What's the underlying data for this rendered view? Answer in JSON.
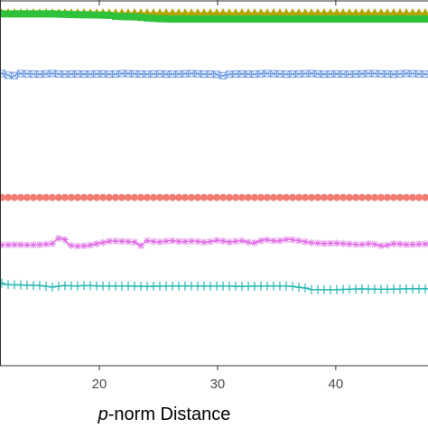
{
  "chart_data": {
    "type": "line",
    "title": "",
    "xlabel_italic": "p",
    "xlabel_rest": "-norm Distance",
    "ylabel": "",
    "xlim": [
      11.6,
      47.8
    ],
    "x_ticks": [
      20,
      30,
      40
    ],
    "grid": false,
    "legend": "none",
    "series": [
      {
        "marker": "triangle",
        "color": "#b5a300",
        "x": [
          11.6,
          16,
          20,
          24,
          28,
          32,
          36,
          40,
          44,
          47.8
        ],
        "y": [
          0.965,
          0.965,
          0.965,
          0.965,
          0.965,
          0.965,
          0.965,
          0.965,
          0.965,
          0.965
        ]
      },
      {
        "marker": "square",
        "color": "#2ec23b",
        "x": [
          11.6,
          14,
          16,
          18,
          20,
          21,
          21.5,
          23,
          24,
          25,
          26,
          30,
          35,
          40,
          45,
          47.8
        ],
        "y": [
          0.962,
          0.962,
          0.962,
          0.96,
          0.959,
          0.958,
          0.955,
          0.954,
          0.951,
          0.949,
          0.948,
          0.948,
          0.948,
          0.948,
          0.948,
          0.948
        ]
      },
      {
        "marker": "square-x",
        "color": "#6f9be3",
        "x": [
          11.6,
          12,
          12.6,
          13.2,
          14,
          15,
          16,
          17,
          18,
          19,
          20,
          21,
          22,
          23,
          24,
          25,
          26,
          27,
          28,
          29,
          29.8,
          30.3,
          31,
          32,
          33,
          34,
          35,
          36,
          37,
          38,
          39,
          40,
          41,
          42,
          43,
          44,
          45,
          46,
          47,
          47.8
        ],
        "y": [
          0.8,
          0.798,
          0.79,
          0.799,
          0.798,
          0.797,
          0.799,
          0.797,
          0.798,
          0.797,
          0.798,
          0.797,
          0.799,
          0.798,
          0.797,
          0.798,
          0.797,
          0.798,
          0.799,
          0.797,
          0.798,
          0.792,
          0.797,
          0.798,
          0.797,
          0.799,
          0.798,
          0.797,
          0.798,
          0.799,
          0.797,
          0.798,
          0.797,
          0.798,
          0.799,
          0.798,
          0.797,
          0.799,
          0.798,
          0.797
        ]
      },
      {
        "marker": "circle",
        "color": "#f07c74",
        "x": [
          11.6,
          16,
          20,
          24,
          28,
          32,
          36,
          40,
          44,
          47.8
        ],
        "y": [
          0.46,
          0.46,
          0.46,
          0.46,
          0.46,
          0.46,
          0.46,
          0.46,
          0.46,
          0.46
        ]
      },
      {
        "marker": "asterisk",
        "color": "#e072e6",
        "x": [
          11.6,
          13,
          14,
          15,
          16,
          16.5,
          17,
          17.4,
          18,
          19,
          20,
          21,
          22,
          23,
          23.5,
          24,
          25,
          26,
          27,
          28,
          29,
          30,
          31,
          32,
          33,
          34,
          35,
          36,
          37,
          38,
          39,
          40,
          41,
          42,
          43,
          44,
          45,
          46,
          47,
          47.8
        ],
        "y": [
          0.33,
          0.331,
          0.33,
          0.331,
          0.333,
          0.348,
          0.349,
          0.33,
          0.327,
          0.328,
          0.335,
          0.341,
          0.34,
          0.338,
          0.328,
          0.342,
          0.338,
          0.342,
          0.339,
          0.341,
          0.337,
          0.343,
          0.338,
          0.342,
          0.335,
          0.345,
          0.34,
          0.346,
          0.341,
          0.336,
          0.334,
          0.335,
          0.333,
          0.331,
          0.334,
          0.327,
          0.334,
          0.331,
          0.332,
          0.333
        ]
      },
      {
        "marker": "plus",
        "color": "#25b7b3",
        "x": [
          11.6,
          12,
          13,
          14,
          15,
          16,
          17,
          18,
          19,
          20,
          22,
          24,
          26,
          28,
          30,
          32,
          34,
          36,
          37.5,
          38,
          40,
          42,
          44,
          46,
          47.8
        ],
        "y": [
          0.228,
          0.222,
          0.221,
          0.22,
          0.219,
          0.215,
          0.219,
          0.218,
          0.219,
          0.218,
          0.218,
          0.217,
          0.218,
          0.218,
          0.218,
          0.217,
          0.218,
          0.218,
          0.212,
          0.208,
          0.208,
          0.21,
          0.209,
          0.21,
          0.21
        ]
      }
    ]
  }
}
